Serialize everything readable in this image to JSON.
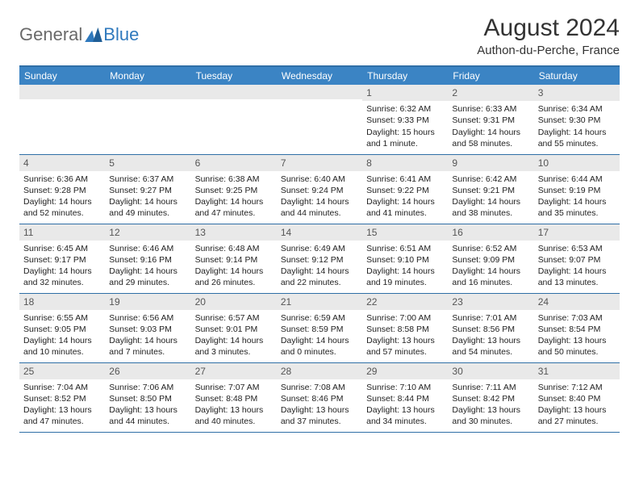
{
  "logo": {
    "text_gray": "General",
    "text_blue": "Blue"
  },
  "title": "August 2024",
  "subtitle": "Authon-du-Perche, France",
  "colors": {
    "header_bg": "#3b84c4",
    "header_border": "#2f6fa6",
    "daynum_bg": "#e9e9e9",
    "logo_gray": "#6a6a6a",
    "logo_blue": "#2f79bd"
  },
  "dayHeaders": [
    "Sunday",
    "Monday",
    "Tuesday",
    "Wednesday",
    "Thursday",
    "Friday",
    "Saturday"
  ],
  "weeks": [
    [
      {
        "n": "",
        "sr": "",
        "ss": "",
        "dl": ""
      },
      {
        "n": "",
        "sr": "",
        "ss": "",
        "dl": ""
      },
      {
        "n": "",
        "sr": "",
        "ss": "",
        "dl": ""
      },
      {
        "n": "",
        "sr": "",
        "ss": "",
        "dl": ""
      },
      {
        "n": "1",
        "sr": "Sunrise: 6:32 AM",
        "ss": "Sunset: 9:33 PM",
        "dl": "Daylight: 15 hours and 1 minute."
      },
      {
        "n": "2",
        "sr": "Sunrise: 6:33 AM",
        "ss": "Sunset: 9:31 PM",
        "dl": "Daylight: 14 hours and 58 minutes."
      },
      {
        "n": "3",
        "sr": "Sunrise: 6:34 AM",
        "ss": "Sunset: 9:30 PM",
        "dl": "Daylight: 14 hours and 55 minutes."
      }
    ],
    [
      {
        "n": "4",
        "sr": "Sunrise: 6:36 AM",
        "ss": "Sunset: 9:28 PM",
        "dl": "Daylight: 14 hours and 52 minutes."
      },
      {
        "n": "5",
        "sr": "Sunrise: 6:37 AM",
        "ss": "Sunset: 9:27 PM",
        "dl": "Daylight: 14 hours and 49 minutes."
      },
      {
        "n": "6",
        "sr": "Sunrise: 6:38 AM",
        "ss": "Sunset: 9:25 PM",
        "dl": "Daylight: 14 hours and 47 minutes."
      },
      {
        "n": "7",
        "sr": "Sunrise: 6:40 AM",
        "ss": "Sunset: 9:24 PM",
        "dl": "Daylight: 14 hours and 44 minutes."
      },
      {
        "n": "8",
        "sr": "Sunrise: 6:41 AM",
        "ss": "Sunset: 9:22 PM",
        "dl": "Daylight: 14 hours and 41 minutes."
      },
      {
        "n": "9",
        "sr": "Sunrise: 6:42 AM",
        "ss": "Sunset: 9:21 PM",
        "dl": "Daylight: 14 hours and 38 minutes."
      },
      {
        "n": "10",
        "sr": "Sunrise: 6:44 AM",
        "ss": "Sunset: 9:19 PM",
        "dl": "Daylight: 14 hours and 35 minutes."
      }
    ],
    [
      {
        "n": "11",
        "sr": "Sunrise: 6:45 AM",
        "ss": "Sunset: 9:17 PM",
        "dl": "Daylight: 14 hours and 32 minutes."
      },
      {
        "n": "12",
        "sr": "Sunrise: 6:46 AM",
        "ss": "Sunset: 9:16 PM",
        "dl": "Daylight: 14 hours and 29 minutes."
      },
      {
        "n": "13",
        "sr": "Sunrise: 6:48 AM",
        "ss": "Sunset: 9:14 PM",
        "dl": "Daylight: 14 hours and 26 minutes."
      },
      {
        "n": "14",
        "sr": "Sunrise: 6:49 AM",
        "ss": "Sunset: 9:12 PM",
        "dl": "Daylight: 14 hours and 22 minutes."
      },
      {
        "n": "15",
        "sr": "Sunrise: 6:51 AM",
        "ss": "Sunset: 9:10 PM",
        "dl": "Daylight: 14 hours and 19 minutes."
      },
      {
        "n": "16",
        "sr": "Sunrise: 6:52 AM",
        "ss": "Sunset: 9:09 PM",
        "dl": "Daylight: 14 hours and 16 minutes."
      },
      {
        "n": "17",
        "sr": "Sunrise: 6:53 AM",
        "ss": "Sunset: 9:07 PM",
        "dl": "Daylight: 14 hours and 13 minutes."
      }
    ],
    [
      {
        "n": "18",
        "sr": "Sunrise: 6:55 AM",
        "ss": "Sunset: 9:05 PM",
        "dl": "Daylight: 14 hours and 10 minutes."
      },
      {
        "n": "19",
        "sr": "Sunrise: 6:56 AM",
        "ss": "Sunset: 9:03 PM",
        "dl": "Daylight: 14 hours and 7 minutes."
      },
      {
        "n": "20",
        "sr": "Sunrise: 6:57 AM",
        "ss": "Sunset: 9:01 PM",
        "dl": "Daylight: 14 hours and 3 minutes."
      },
      {
        "n": "21",
        "sr": "Sunrise: 6:59 AM",
        "ss": "Sunset: 8:59 PM",
        "dl": "Daylight: 14 hours and 0 minutes."
      },
      {
        "n": "22",
        "sr": "Sunrise: 7:00 AM",
        "ss": "Sunset: 8:58 PM",
        "dl": "Daylight: 13 hours and 57 minutes."
      },
      {
        "n": "23",
        "sr": "Sunrise: 7:01 AM",
        "ss": "Sunset: 8:56 PM",
        "dl": "Daylight: 13 hours and 54 minutes."
      },
      {
        "n": "24",
        "sr": "Sunrise: 7:03 AM",
        "ss": "Sunset: 8:54 PM",
        "dl": "Daylight: 13 hours and 50 minutes."
      }
    ],
    [
      {
        "n": "25",
        "sr": "Sunrise: 7:04 AM",
        "ss": "Sunset: 8:52 PM",
        "dl": "Daylight: 13 hours and 47 minutes."
      },
      {
        "n": "26",
        "sr": "Sunrise: 7:06 AM",
        "ss": "Sunset: 8:50 PM",
        "dl": "Daylight: 13 hours and 44 minutes."
      },
      {
        "n": "27",
        "sr": "Sunrise: 7:07 AM",
        "ss": "Sunset: 8:48 PM",
        "dl": "Daylight: 13 hours and 40 minutes."
      },
      {
        "n": "28",
        "sr": "Sunrise: 7:08 AM",
        "ss": "Sunset: 8:46 PM",
        "dl": "Daylight: 13 hours and 37 minutes."
      },
      {
        "n": "29",
        "sr": "Sunrise: 7:10 AM",
        "ss": "Sunset: 8:44 PM",
        "dl": "Daylight: 13 hours and 34 minutes."
      },
      {
        "n": "30",
        "sr": "Sunrise: 7:11 AM",
        "ss": "Sunset: 8:42 PM",
        "dl": "Daylight: 13 hours and 30 minutes."
      },
      {
        "n": "31",
        "sr": "Sunrise: 7:12 AM",
        "ss": "Sunset: 8:40 PM",
        "dl": "Daylight: 13 hours and 27 minutes."
      }
    ]
  ]
}
